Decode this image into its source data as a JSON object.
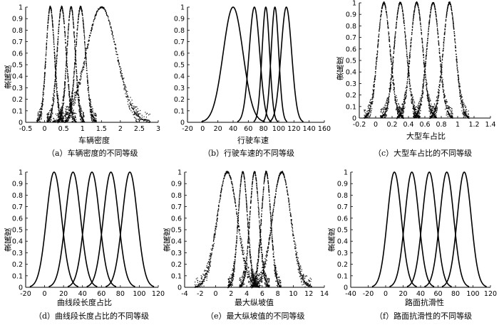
{
  "chart_data": [
    {
      "type": "line",
      "id": "a",
      "xlabel": "车辆密度",
      "ylabel": "隶属度",
      "caption": "（a）车辆密度的不同等级",
      "xlim": [
        -0.5,
        3
      ],
      "ylim": [
        0,
        1
      ],
      "xticks": [
        -0.5,
        0,
        0.5,
        1,
        1.5,
        2,
        2.5,
        3
      ],
      "xtick_labels": [
        "-0.5",
        "0",
        "0.5",
        "1",
        "1.5",
        "2",
        "2.5",
        "3"
      ],
      "yticks": [
        0,
        0.1,
        0.2,
        0.3,
        0.4,
        0.5,
        0.6,
        0.7,
        0.8,
        0.9,
        1
      ],
      "ytick_labels": [
        "0",
        "0.1",
        "0.2",
        "0.3",
        "0.4",
        "0.5",
        "0.6",
        "0.7",
        "0.8",
        "0.9",
        "1"
      ],
      "style": "dotted",
      "series": [
        {
          "mu": 0.15,
          "sigma": 0.11
        },
        {
          "mu": 0.45,
          "sigma": 0.12
        },
        {
          "mu": 0.7,
          "sigma": 0.11
        },
        {
          "mu": 0.95,
          "sigma": 0.13
        },
        {
          "mu": 1.5,
          "sigma": 0.4
        }
      ]
    },
    {
      "type": "line",
      "id": "b",
      "xlabel": "行驶车速",
      "ylabel": "",
      "caption": "（b）行驶车速的不同等级",
      "xlim": [
        -20,
        160
      ],
      "ylim": [
        0,
        1
      ],
      "xticks": [
        -20,
        0,
        20,
        40,
        60,
        80,
        100,
        120,
        140,
        160
      ],
      "xtick_labels": [
        "-20",
        "0",
        "20",
        "40",
        "60",
        "80",
        "100",
        "120",
        "140",
        "160"
      ],
      "yticks": [
        0,
        0.1,
        0.2,
        0.3,
        0.4,
        0.5,
        0.6,
        0.7,
        0.8,
        0.9,
        1
      ],
      "ytick_labels": [
        "0",
        "0.1",
        "0.2",
        "0.3",
        "0.4",
        "0.5",
        "0.6",
        "0.7",
        "0.8",
        "0.9",
        "1"
      ],
      "style": "solid",
      "series": [
        {
          "mu": 40,
          "sigma": 13
        },
        {
          "mu": 68,
          "sigma": 7
        },
        {
          "mu": 83,
          "sigma": 5
        },
        {
          "mu": 95,
          "sigma": 5
        },
        {
          "mu": 110,
          "sigma": 7
        }
      ]
    },
    {
      "type": "line",
      "id": "c",
      "xlabel": "大型车占比",
      "ylabel": "隶属度",
      "caption": "（c）大型车占比的不同等级",
      "xlim": [
        -0.2,
        1.4
      ],
      "ylim": [
        0,
        1
      ],
      "xticks": [
        -0.2,
        0,
        0.2,
        0.4,
        0.6,
        0.8,
        1,
        1.2,
        1.4
      ],
      "xtick_labels": [
        "-0.2",
        "0",
        "0.2",
        "0.4",
        "0.6",
        "0.8",
        "1",
        "1.2",
        "1.4"
      ],
      "yticks": [
        0,
        0.1,
        0.2,
        0.3,
        0.4,
        0.5,
        0.6,
        0.7,
        0.8,
        0.9,
        1
      ],
      "ytick_labels": [
        "0",
        "0.1",
        "0.2",
        "0.3",
        "0.4",
        "0.5",
        "0.6",
        "0.7",
        "0.8",
        "0.9",
        "1"
      ],
      "style": "dotted",
      "series": [
        {
          "mu": 0.1,
          "sigma": 0.075
        },
        {
          "mu": 0.3,
          "sigma": 0.075
        },
        {
          "mu": 0.5,
          "sigma": 0.075
        },
        {
          "mu": 0.7,
          "sigma": 0.075
        },
        {
          "mu": 0.9,
          "sigma": 0.075
        }
      ]
    },
    {
      "type": "line",
      "id": "d",
      "xlabel": "曲线段长度占比",
      "ylabel": "隶属度",
      "caption": "（d）曲线段长度占比的不同等级",
      "xlim": [
        -20,
        120
      ],
      "ylim": [
        0,
        1
      ],
      "xticks": [
        -20,
        0,
        20,
        40,
        60,
        80,
        100,
        120
      ],
      "xtick_labels": [
        "-20",
        "0",
        "20",
        "40",
        "60",
        "80",
        "100",
        "120"
      ],
      "yticks": [
        0,
        0.1,
        0.2,
        0.3,
        0.4,
        0.5,
        0.6,
        0.7,
        0.8,
        0.9,
        1
      ],
      "ytick_labels": [
        "0",
        "0.1",
        "0.2",
        "0.3",
        "0.4",
        "0.5",
        "0.6",
        "0.7",
        "0.8",
        "0.9",
        "1"
      ],
      "style": "solid",
      "series": [
        {
          "mu": 10,
          "sigma": 8
        },
        {
          "mu": 30,
          "sigma": 8
        },
        {
          "mu": 50,
          "sigma": 8
        },
        {
          "mu": 70,
          "sigma": 8
        },
        {
          "mu": 90,
          "sigma": 8
        }
      ]
    },
    {
      "type": "line",
      "id": "e",
      "xlabel": "最大纵坡值",
      "ylabel": "隶属度",
      "caption": "（e）最大纵坡值的不同等级",
      "xlim": [
        -4,
        14
      ],
      "ylim": [
        0,
        1
      ],
      "xticks": [
        -4,
        -2,
        0,
        2,
        4,
        6,
        8,
        10,
        12,
        14
      ],
      "xtick_labels": [
        "-4",
        "-2",
        "0",
        "2",
        "4",
        "6",
        "8",
        "10",
        "12",
        "14"
      ],
      "yticks": [
        0,
        0.1,
        0.2,
        0.3,
        0.4,
        0.5,
        0.6,
        0.7,
        0.8,
        0.9,
        1
      ],
      "ytick_labels": [
        "0",
        "0.1",
        "0.2",
        "0.3",
        "0.4",
        "0.5",
        "0.6",
        "0.7",
        "0.8",
        "0.9",
        "1"
      ],
      "style": "dotted",
      "series": [
        {
          "mu": 1.5,
          "sigma": 1.3
        },
        {
          "mu": 3.5,
          "sigma": 0.6
        },
        {
          "mu": 5,
          "sigma": 0.6
        },
        {
          "mu": 6.5,
          "sigma": 0.6
        },
        {
          "mu": 8.5,
          "sigma": 1.2
        }
      ]
    },
    {
      "type": "line",
      "id": "f",
      "xlabel": "路面抗滑性",
      "ylabel": "隶属度",
      "caption": "（f）路面抗滑性的不同等级",
      "xlim": [
        -40,
        120
      ],
      "ylim": [
        0,
        1
      ],
      "xticks": [
        -40,
        -20,
        0,
        20,
        40,
        60,
        80,
        100,
        120
      ],
      "xtick_labels": [
        "-40",
        "-20",
        "0",
        "20",
        "40",
        "60",
        "80",
        "100",
        "120"
      ],
      "yticks": [
        0,
        0.1,
        0.2,
        0.3,
        0.4,
        0.5,
        0.6,
        0.7,
        0.8,
        0.9,
        1
      ],
      "ytick_labels": [
        "0",
        "0.1",
        "0.2",
        "0.3",
        "0.4",
        "0.5",
        "0.6",
        "0.7",
        "0.8",
        "0.9",
        "1"
      ],
      "style": "solid",
      "series": [
        {
          "mu": 10,
          "sigma": 8
        },
        {
          "mu": 30,
          "sigma": 8
        },
        {
          "mu": 50,
          "sigma": 8
        },
        {
          "mu": 70,
          "sigma": 8
        },
        {
          "mu": 90,
          "sigma": 8
        }
      ]
    }
  ]
}
